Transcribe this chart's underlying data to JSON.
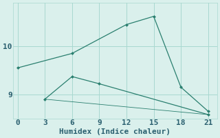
{
  "line1_x": [
    0,
    6,
    12,
    15,
    18,
    21
  ],
  "line1_y": [
    9.55,
    9.85,
    10.45,
    10.62,
    9.15,
    8.65
  ],
  "line2_x": [
    3,
    6,
    9,
    21
  ],
  "line2_y": [
    8.9,
    9.37,
    9.22,
    8.58
  ],
  "line3_x": [
    3,
    21
  ],
  "line3_y": [
    8.9,
    8.58
  ],
  "line_color": "#2a7f6f",
  "bg_color": "#daf0ec",
  "grid_color": "#a8d8d0",
  "xlabel": "Humidex (Indice chaleur)",
  "xlim": [
    -0.5,
    22
  ],
  "ylim": [
    8.5,
    10.9
  ],
  "xticks": [
    0,
    3,
    6,
    9,
    12,
    15,
    18,
    21
  ],
  "yticks": [
    9,
    10
  ],
  "font_color": "#2a5f6f",
  "font_size": 8
}
